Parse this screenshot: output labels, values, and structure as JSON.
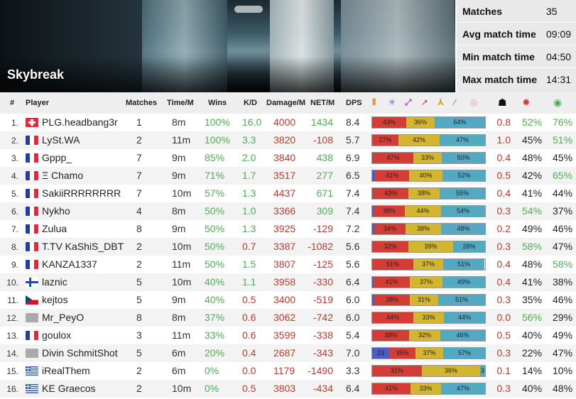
{
  "map": {
    "name": "Skybreak"
  },
  "summary": [
    {
      "label": "Matches",
      "value": "35"
    },
    {
      "label": "Avg match time",
      "value": "09:09"
    },
    {
      "label": "Min match time",
      "value": "04:50"
    },
    {
      "label": "Max match time",
      "value": "14:31"
    }
  ],
  "columns": {
    "num": "#",
    "player": "Player",
    "matches": "Matches",
    "time": "Time/M",
    "wins": "Wins",
    "kd": "K/D",
    "damage": "Damage/M",
    "net": "NET/M",
    "dps": "DPS"
  },
  "weapon_icons": [
    {
      "name": "bullets-icon",
      "glyph": "⦀",
      "color": "#d9893a"
    },
    {
      "name": "cross-hair-icon",
      "glyph": "✳",
      "color": "#5b72c9"
    },
    {
      "name": "shotgun-icon",
      "glyph": "⤢",
      "color": "#b040c0"
    },
    {
      "name": "rocket-icon",
      "glyph": "➚",
      "color": "#d43d35"
    },
    {
      "name": "triad-icon",
      "glyph": "⅄",
      "color": "#d3a52f"
    },
    {
      "name": "rail-icon",
      "glyph": "⁄",
      "color": "#53a9c2"
    },
    {
      "name": "orb-icon",
      "glyph": "◎",
      "color": "#e89aa0"
    }
  ],
  "extra_icons": [
    {
      "name": "skull-icon",
      "glyph": "☗",
      "color": "#111111"
    },
    {
      "name": "claw-icon",
      "glyph": "✹",
      "color": "#d43d35"
    },
    {
      "name": "eye-icon",
      "glyph": "◉",
      "color": "#4caf50"
    }
  ],
  "colors": {
    "positive": "#4caf50",
    "negative": "#c0392b"
  },
  "rows": [
    {
      "rank": "1.",
      "flag": "ch",
      "name": "PLG.headbang3r",
      "matches": "1",
      "time": "8m",
      "wins": "100%",
      "kd": "16.0",
      "damage": "4000",
      "net": "1434",
      "dps": "8.4",
      "bar": [
        0,
        43,
        36,
        64
      ],
      "bar_labels": [
        "",
        "43%",
        "36%",
        "64%"
      ],
      "sp": "0.8",
      "p1": "52%",
      "p2": "76%"
    },
    {
      "rank": "2.",
      "flag": "fr",
      "name": "LySt.WA",
      "matches": "2",
      "time": "11m",
      "wins": "100%",
      "kd": "3.3",
      "damage": "3820",
      "net": "-108",
      "dps": "5.7",
      "bar": [
        0,
        27,
        42,
        47
      ],
      "bar_labels": [
        "",
        "27%",
        "42%",
        "47%"
      ],
      "sp": "1.0",
      "p1": "45%",
      "p2": "51%"
    },
    {
      "rank": "3.",
      "flag": "fr",
      "name": "Gppp_",
      "matches": "7",
      "time": "9m",
      "wins": "85%",
      "kd": "2.0",
      "damage": "3840",
      "net": "438",
      "dps": "6.9",
      "bar": [
        1,
        47,
        33,
        50
      ],
      "bar_labels": [
        "",
        "47%",
        "33%",
        "50%"
      ],
      "sp": "0.4",
      "p1": "48%",
      "p2": "45%"
    },
    {
      "rank": "4.",
      "flag": "fr",
      "name": "Ξ Chamo",
      "matches": "7",
      "time": "9m",
      "wins": "71%",
      "kd": "1.7",
      "damage": "3517",
      "net": "277",
      "dps": "6.5",
      "bar": [
        3,
        41,
        40,
        52
      ],
      "bar_labels": [
        "",
        "41%",
        "40%",
        "52%"
      ],
      "sp": "0.5",
      "p1": "42%",
      "p2": "65%"
    },
    {
      "rank": "5.",
      "flag": "fr",
      "name": "SakiiRRRRRRRR",
      "matches": "7",
      "time": "10m",
      "wins": "57%",
      "kd": "1.3",
      "damage": "4437",
      "net": "671",
      "dps": "7.4",
      "bar": [
        1,
        43,
        38,
        55
      ],
      "bar_labels": [
        "",
        "43%",
        "38%",
        "55%"
      ],
      "sp": "0.4",
      "p1": "41%",
      "p2": "44%"
    },
    {
      "rank": "6.",
      "flag": "fr",
      "name": "Nykho",
      "matches": "4",
      "time": "8m",
      "wins": "50%",
      "kd": "1.0",
      "damage": "3366",
      "net": "309",
      "dps": "7.4",
      "bar": [
        2,
        38,
        44,
        54
      ],
      "bar_labels": [
        "",
        "38%",
        "44%",
        "54%"
      ],
      "sp": "0.3",
      "p1": "54%",
      "p2": "37%"
    },
    {
      "rank": "7.",
      "flag": "fr",
      "name": "Zulua",
      "matches": "8",
      "time": "9m",
      "wins": "50%",
      "kd": "1.3",
      "damage": "3925",
      "net": "-129",
      "dps": "7.2",
      "bar": [
        2,
        34,
        38,
        48
      ],
      "bar_labels": [
        "",
        "34%",
        "38%",
        "48%"
      ],
      "sp": "0.2",
      "p1": "49%",
      "p2": "46%"
    },
    {
      "rank": "8.",
      "flag": "fr",
      "name": "T.TV KaShiS_DBT",
      "matches": "2",
      "time": "10m",
      "wins": "50%",
      "kd": "0.7",
      "damage": "3387",
      "net": "-1082",
      "dps": "5.6",
      "bar": [
        0,
        32,
        39,
        28
      ],
      "bar_labels": [
        "",
        "32%",
        "39%",
        "28%"
      ],
      "sp": "0.3",
      "p1": "58%",
      "p2": "47%"
    },
    {
      "rank": "9.",
      "flag": "fr",
      "name": "KANZA1337",
      "matches": "2",
      "time": "11m",
      "wins": "50%",
      "kd": "1.5",
      "damage": "3807",
      "net": "-125",
      "dps": "5.6",
      "bar": [
        0,
        51,
        37,
        51
      ],
      "bar_labels": [
        "",
        "51%",
        "37%",
        "51%"
      ],
      "sp": "0.4",
      "p1": "48%",
      "p2": "58%"
    },
    {
      "rank": "10.",
      "flag": "fi",
      "name": "laznic",
      "matches": "5",
      "time": "10m",
      "wins": "40%",
      "kd": "1.1",
      "damage": "3958",
      "net": "-330",
      "dps": "6.4",
      "bar": [
        2,
        41,
        37,
        49
      ],
      "bar_labels": [
        "",
        "41%",
        "37%",
        "49%"
      ],
      "sp": "0.4",
      "p1": "41%",
      "p2": "38%"
    },
    {
      "rank": "11.",
      "flag": "cz",
      "name": "kejtos",
      "matches": "5",
      "time": "9m",
      "wins": "40%",
      "kd": "0.5",
      "damage": "3400",
      "net": "-519",
      "dps": "6.0",
      "bar": [
        2,
        38,
        31,
        51
      ],
      "bar_labels": [
        "",
        "38%",
        "31%",
        "51%"
      ],
      "sp": "0.3",
      "p1": "35%",
      "p2": "46%"
    },
    {
      "rank": "12.",
      "flag": "xx",
      "name": "Mr_PeyO",
      "matches": "8",
      "time": "8m",
      "wins": "37%",
      "kd": "0.6",
      "damage": "3062",
      "net": "-742",
      "dps": "6.0",
      "bar": [
        0,
        44,
        33,
        44
      ],
      "bar_labels": [
        "",
        "44%",
        "33%",
        "44%"
      ],
      "sp": "0.0",
      "p1": "56%",
      "p2": "29%"
    },
    {
      "rank": "13.",
      "flag": "fr",
      "name": "goulox",
      "matches": "3",
      "time": "11m",
      "wins": "33%",
      "kd": "0.6",
      "damage": "3599",
      "net": "-338",
      "dps": "5.4",
      "bar": [
        0,
        38,
        32,
        46
      ],
      "bar_labels": [
        "",
        "38%",
        "32%",
        "46%"
      ],
      "sp": "0.5",
      "p1": "40%",
      "p2": "49%"
    },
    {
      "rank": "14.",
      "flag": "xx",
      "name": "Divin SchmitShot",
      "matches": "5",
      "time": "6m",
      "wins": "20%",
      "kd": "0.4",
      "damage": "2687",
      "net": "-343",
      "dps": "7.0",
      "bar": [
        23,
        35,
        37,
        57
      ],
      "bar_labels": [
        "23",
        "35%",
        "37%",
        "57%"
      ],
      "sp": "0.3",
      "p1": "22%",
      "p2": "47%"
    },
    {
      "rank": "15.",
      "flag": "gr",
      "name": "iRealThem",
      "matches": "2",
      "time": "6m",
      "wins": "0%",
      "kd": "0.0",
      "damage": "1179",
      "net": "-1490",
      "dps": "3.3",
      "bar": [
        0,
        31,
        36,
        3
      ],
      "bar_labels": [
        "",
        "31%",
        "36%",
        "3"
      ],
      "sp": "0.1",
      "p1": "14%",
      "p2": "10%"
    },
    {
      "rank": "16.",
      "flag": "gr",
      "name": "KE Graecos",
      "matches": "2",
      "time": "10m",
      "wins": "0%",
      "kd": "0.5",
      "damage": "3803",
      "net": "-434",
      "dps": "6.4",
      "bar": [
        0,
        41,
        33,
        47
      ],
      "bar_labels": [
        "",
        "41%",
        "33%",
        "47%"
      ],
      "sp": "0.3",
      "p1": "40%",
      "p2": "48%"
    }
  ]
}
